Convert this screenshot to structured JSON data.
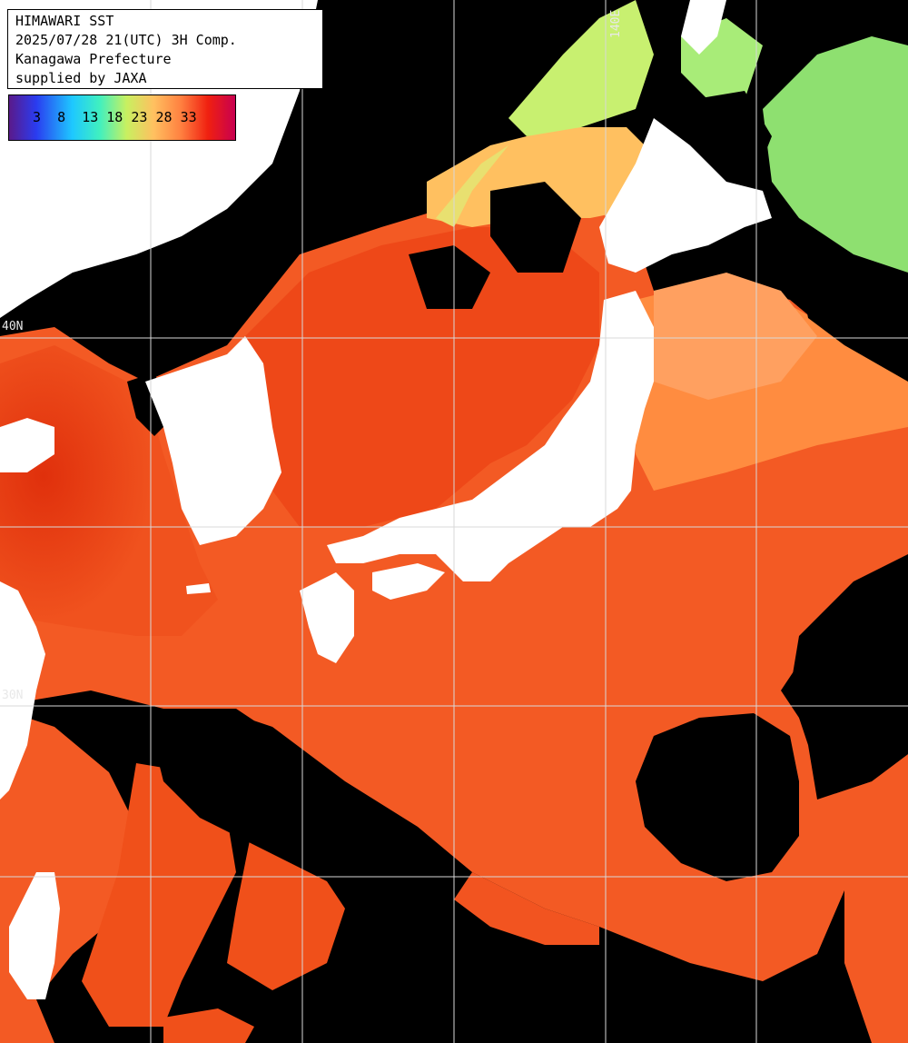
{
  "header": {
    "line1": "HIMAWARI SST",
    "line2": "2025/07/28 21(UTC) 3H Comp.",
    "line3": "Kanagawa Prefecture",
    "line4": "supplied by JAXA"
  },
  "legend": {
    "ticks": [
      "3",
      "8",
      "13",
      "18",
      "23",
      "28",
      "33"
    ],
    "colors": {
      "cold": "#5a1a8a",
      "mid": "#c8f060",
      "warm": "#ff8040",
      "hot": "#c80050"
    }
  },
  "grid_labels": {
    "lon_140": "140E",
    "lat_40": "40N",
    "lat_30": "30N"
  },
  "map_colors": {
    "land": "#ffffff",
    "cloud": "#000000",
    "sea_hot": "#e83a10",
    "sea_warm": "#f56428",
    "sea_mild": "#ff9a50",
    "sea_cool": "#e6e66a",
    "sea_cold": "#8ee070",
    "grid": "#d8d8d8"
  }
}
